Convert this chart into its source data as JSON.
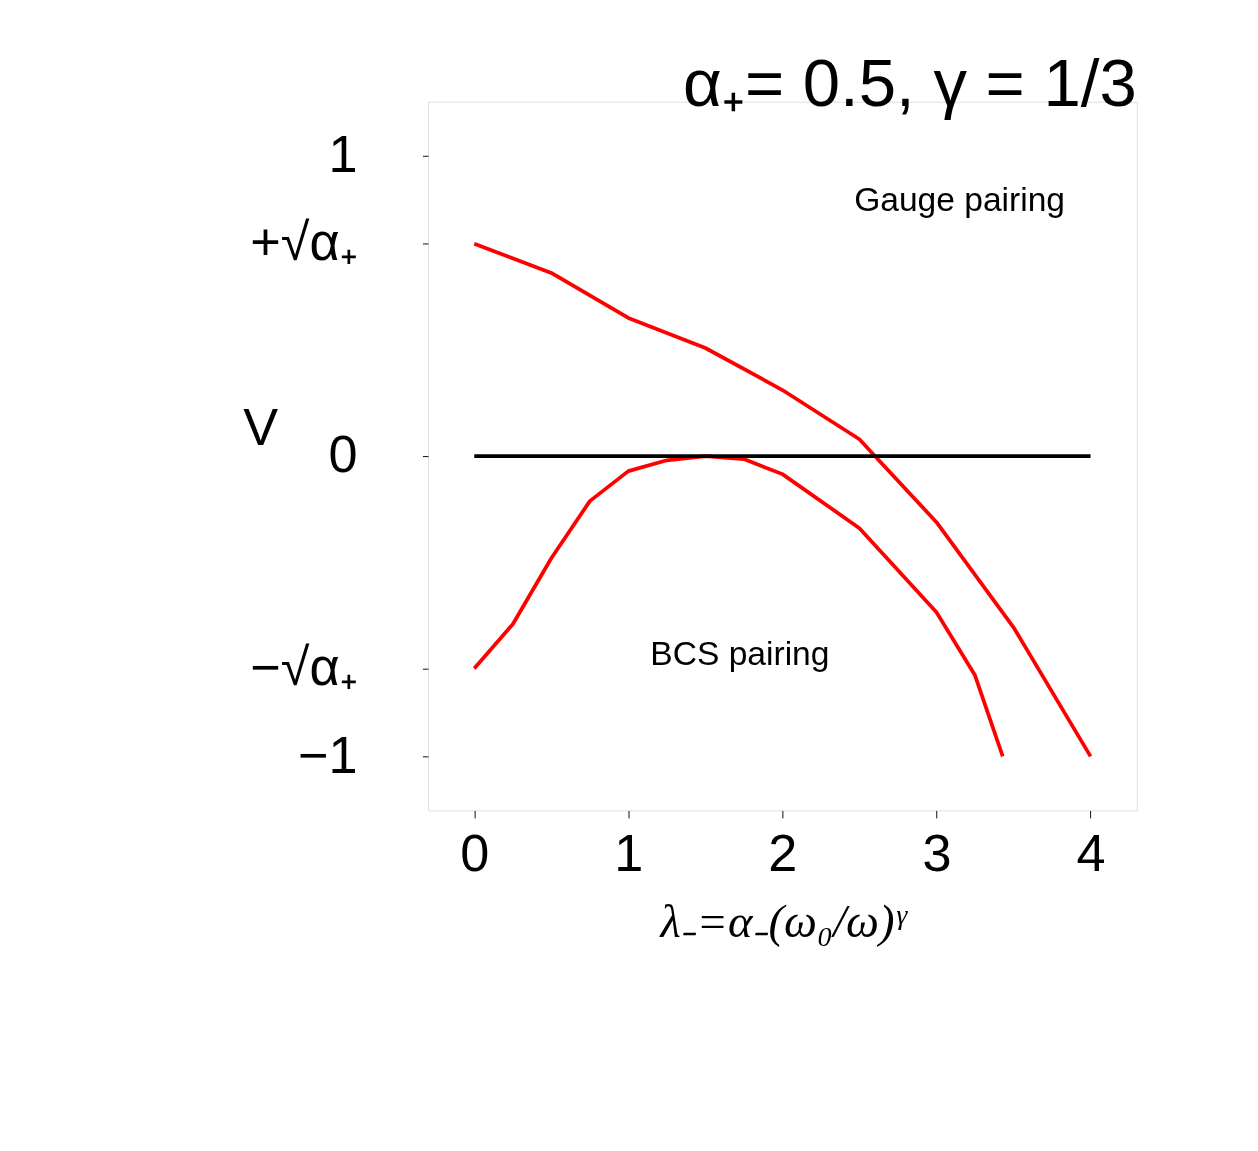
{
  "chart_data": {
    "type": "line",
    "title": "α₊= 0.5, γ = 1/3",
    "xlabel": "λ₋=α₋(ω₀/ω)ᵞ",
    "ylabel": "V",
    "xlim": [
      -0.3,
      4.3
    ],
    "xticks": [
      0,
      1,
      2,
      3,
      4
    ],
    "ylim": [
      -1.18,
      1.18
    ],
    "yticks": [
      {
        "value": -1,
        "label": "−1"
      },
      {
        "value": -0.707,
        "label": "−√α₊"
      },
      0,
      {
        "value": 0.707,
        "label": "+√α₊"
      },
      1
    ],
    "grid": false,
    "marker": "none",
    "line_style": "solid",
    "series": [
      {
        "color": "#ff0000",
        "x": [
          0,
          0.5,
          1,
          1.5,
          2,
          2.5,
          2.6,
          3,
          3.5,
          4
        ],
        "values": [
          0.707,
          0.61,
          0.46,
          0.36,
          0.22,
          0.056,
          0,
          -0.22,
          -0.57,
          -1
        ]
      },
      {
        "color": "#ff0000",
        "x": [
          0,
          0.25,
          0.5,
          0.75,
          1,
          1.25,
          1.5,
          1.75,
          2,
          2.5,
          3,
          3.25,
          3.43
        ],
        "values": [
          -0.707,
          -0.56,
          -0.34,
          -0.15,
          -0.05,
          -0.014,
          0,
          -0.01,
          -0.06,
          -0.24,
          -0.52,
          -0.73,
          -1
        ]
      },
      {
        "color": "#000000",
        "x": [
          0,
          4
        ],
        "values": [
          0,
          0
        ]
      }
    ],
    "annotations": [
      "Gauge pairing",
      "BCS pairing"
    ]
  }
}
